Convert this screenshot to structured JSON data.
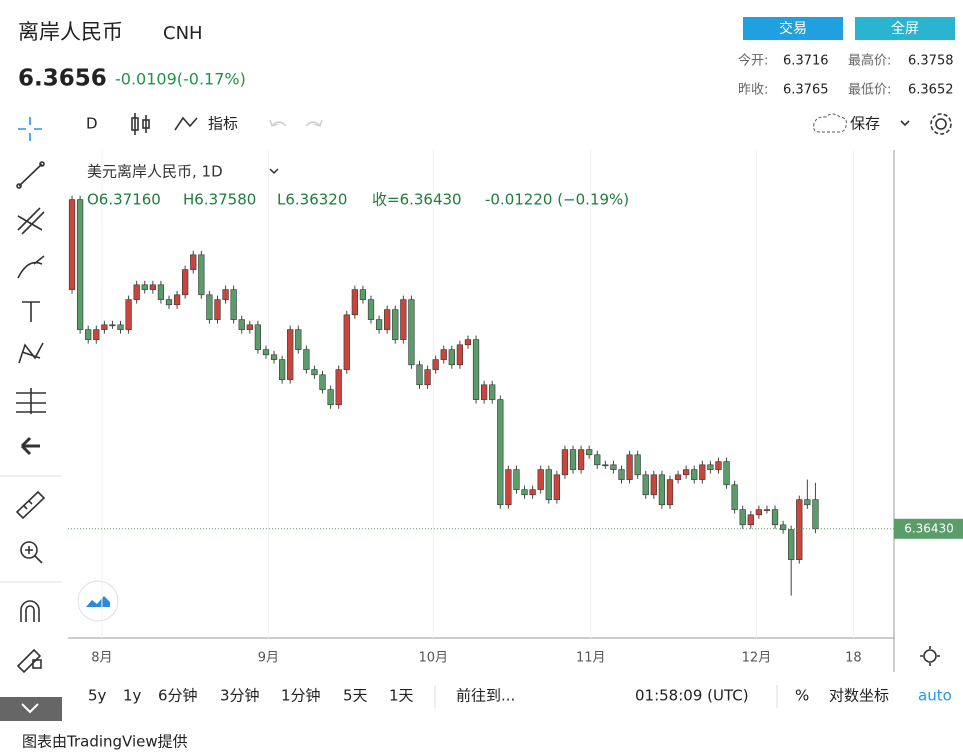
{
  "header": {
    "title": "离岸人民币",
    "symbol": "CNH",
    "price": 6.3656,
    "change": "-0.0109(-0.17%)"
  },
  "buttons": [
    "交易",
    "全屏"
  ],
  "quote": {
    "open_label": "今开:",
    "open": 6.3716,
    "high_label": "最高价:",
    "high": 6.3758,
    "prev_label": "昨收:",
    "prev": 6.3765,
    "low_label": "最低价:",
    "low": 6.3652
  },
  "toolbar": {
    "interval": "D",
    "indicators": "指标",
    "save": "保存"
  },
  "range_bar": [
    "5y",
    "1y",
    "6分钟",
    "3分钟",
    "1分钟",
    "5天",
    "1天"
  ],
  "goto": "前往到...",
  "clock": "01:58:09 (UTC)",
  "percent": "%",
  "log": "对数坐标",
  "auto": "auto",
  "footer": "图表由TradingView提供",
  "chart_data": {
    "type": "candlestick",
    "title": "美元离岸人民币, 1D",
    "ohlc_legend": [
      "O6.37160",
      "H6.37580",
      "L6.36320",
      "收=6.36430",
      "-0.01220 (−0.19%)"
    ],
    "last_label": "6.36430",
    "last_value": 6.3643,
    "up_color": "#c9463d",
    "down_color": "#5b9c6b",
    "categories": [
      null,
      null,
      null,
      null,
      null,
      null,
      null,
      null,
      null,
      null,
      null,
      null,
      null,
      null,
      null,
      null,
      null,
      null,
      null,
      null,
      null,
      null,
      null,
      null,
      null,
      null,
      null,
      null,
      null,
      null,
      null,
      null,
      null,
      null,
      null,
      null,
      null,
      null,
      null,
      null,
      null,
      null,
      null,
      null,
      null,
      null,
      null,
      null,
      null,
      null,
      null,
      null,
      null,
      null,
      null,
      null,
      null,
      null,
      null,
      null,
      null,
      null,
      null,
      null,
      null,
      null,
      null,
      null,
      null,
      null,
      null,
      null,
      null,
      null,
      null,
      null,
      null,
      null,
      null,
      null,
      null,
      null,
      null,
      null,
      null,
      null,
      null,
      null,
      null,
      null,
      null,
      null,
      null
    ],
    "open": [
      6.4241,
      6.4466,
      6.4141,
      6.4116,
      6.4141,
      6.4153,
      6.4153,
      6.4141,
      6.4216,
      6.4253,
      6.4241,
      6.4253,
      6.4216,
      6.4203,
      6.4228,
      6.4291,
      6.4328,
      6.4228,
      6.4166,
      6.4216,
      6.4241,
      6.4166,
      6.4141,
      6.4153,
      6.4091,
      6.4078,
      6.4066,
      6.4016,
      6.4141,
      6.4091,
      6.4041,
      6.4028,
      6.3991,
      6.3953,
      6.4041,
      6.4178,
      6.4241,
      6.4216,
      6.4166,
      6.4141,
      6.4191,
      6.4116,
      6.4216,
      6.4053,
      6.4003,
      6.4041,
      6.4066,
      6.4091,
      6.4053,
      6.4103,
      6.4116,
      6.3966,
      6.4003,
      6.3966,
      6.3703,
      6.3791,
      6.3741,
      6.3728,
      6.3741,
      6.3791,
      6.3716,
      6.3778,
      6.3841,
      6.3791,
      6.3841,
      6.3828,
      6.3803,
      6.3803,
      6.3791,
      6.3766,
      6.3828,
      6.3778,
      6.3728,
      6.3778,
      6.3703,
      6.3766,
      6.3778,
      6.3791,
      6.3766,
      6.3803,
      6.3791,
      6.3811,
      6.3753,
      6.3691,
      6.3653,
      6.3678,
      6.3691,
      6.3691,
      6.3653,
      6.3641,
      6.3566,
      6.3716,
      6.3716
    ],
    "high": [
      6.4476,
      6.4476,
      6.4151,
      6.4151,
      6.4163,
      6.4163,
      6.4163,
      6.4226,
      6.4263,
      6.4263,
      6.4263,
      6.4263,
      6.4226,
      6.4238,
      6.4301,
      6.4338,
      6.4338,
      6.4238,
      6.4226,
      6.4251,
      6.4251,
      6.4176,
      6.4163,
      6.4163,
      6.4101,
      6.4088,
      6.4076,
      6.4151,
      6.4151,
      6.4101,
      6.4051,
      6.4038,
      6.4001,
      6.4051,
      6.4188,
      6.4251,
      6.4251,
      6.4226,
      6.4176,
      6.4201,
      6.4201,
      6.4226,
      6.4226,
      6.4063,
      6.4051,
      6.4076,
      6.4101,
      6.4101,
      6.4113,
      6.4126,
      6.4126,
      6.4013,
      6.4013,
      6.3976,
      6.3801,
      6.3801,
      6.3751,
      6.3751,
      6.3801,
      6.3801,
      6.3788,
      6.3851,
      6.3851,
      6.3851,
      6.3851,
      6.3838,
      6.3813,
      6.3813,
      6.3801,
      6.3838,
      6.3838,
      6.3788,
      6.3788,
      6.3788,
      6.3776,
      6.3788,
      6.3801,
      6.3801,
      6.3813,
      6.3813,
      6.3821,
      6.3821,
      6.3763,
      6.3701,
      6.3688,
      6.3701,
      6.3701,
      6.3701,
      6.3663,
      6.3651,
      6.3726,
      6.3766,
      6.3758
    ],
    "low": [
      6.4231,
      6.4131,
      6.4106,
      6.4106,
      6.4131,
      6.4143,
      6.4131,
      6.4131,
      6.4206,
      6.4231,
      6.4231,
      6.4206,
      6.4193,
      6.4193,
      6.4218,
      6.4281,
      6.4218,
      6.4156,
      6.4156,
      6.4206,
      6.4156,
      6.4131,
      6.4131,
      6.4081,
      6.4068,
      6.4056,
      6.4006,
      6.4006,
      6.4081,
      6.4031,
      6.4018,
      6.3981,
      6.3943,
      6.3943,
      6.4031,
      6.4168,
      6.4206,
      6.4156,
      6.4131,
      6.4131,
      6.4106,
      6.4106,
      6.4043,
      6.3993,
      6.3993,
      6.4031,
      6.4056,
      6.4043,
      6.4043,
      6.4093,
      6.3956,
      6.3956,
      6.3956,
      6.3693,
      6.3693,
      6.3731,
      6.3718,
      6.3718,
      6.3731,
      6.3706,
      6.3706,
      6.3768,
      6.3781,
      6.3781,
      6.3818,
      6.3793,
      6.3793,
      6.3781,
      6.3756,
      6.3756,
      6.3768,
      6.3718,
      6.3718,
      6.3693,
      6.3693,
      6.3756,
      6.3768,
      6.3756,
      6.3756,
      6.3781,
      6.3781,
      6.3743,
      6.3681,
      6.3643,
      6.3643,
      6.3668,
      6.3681,
      6.3643,
      6.3631,
      6.3476,
      6.3556,
      6.3693,
      6.3632
    ],
    "close": [
      6.4466,
      6.4141,
      6.4116,
      6.4141,
      6.4153,
      6.4153,
      6.4141,
      6.4216,
      6.4253,
      6.4241,
      6.4253,
      6.4216,
      6.4203,
      6.4228,
      6.4291,
      6.4328,
      6.4228,
      6.4166,
      6.4216,
      6.4241,
      6.4166,
      6.4141,
      6.4153,
      6.4091,
      6.4078,
      6.4066,
      6.4016,
      6.4141,
      6.4091,
      6.4041,
      6.4028,
      6.3991,
      6.3953,
      6.4041,
      6.4178,
      6.4241,
      6.4216,
      6.4166,
      6.4141,
      6.4191,
      6.4116,
      6.4216,
      6.4053,
      6.4003,
      6.4041,
      6.4066,
      6.4091,
      6.4053,
      6.4103,
      6.4116,
      6.3966,
      6.4003,
      6.3966,
      6.3703,
      6.3791,
      6.3741,
      6.3728,
      6.3741,
      6.3791,
      6.3716,
      6.3778,
      6.3841,
      6.3791,
      6.3841,
      6.3828,
      6.3803,
      6.3803,
      6.3791,
      6.3766,
      6.3828,
      6.3778,
      6.3728,
      6.3778,
      6.3703,
      6.3766,
      6.3778,
      6.3791,
      6.3766,
      6.3803,
      6.3791,
      6.3811,
      6.3753,
      6.3691,
      6.3653,
      6.3678,
      6.3691,
      6.3691,
      6.3653,
      6.3641,
      6.3566,
      6.3716,
      6.3703,
      6.3643
    ],
    "xlim": [
      -0.5,
      101.6
    ],
    "ylim": [
      6.337,
      6.459
    ],
    "xticks": [
      {
        "value": 3.7,
        "label": "8月"
      },
      {
        "value": 24.3,
        "label": "9月"
      },
      {
        "value": 44.7,
        "label": "10月"
      },
      {
        "value": 64.2,
        "label": "11月"
      },
      {
        "value": 84.7,
        "label": "12月"
      },
      {
        "value": 96.7,
        "label": "18"
      }
    ],
    "grid": true
  }
}
